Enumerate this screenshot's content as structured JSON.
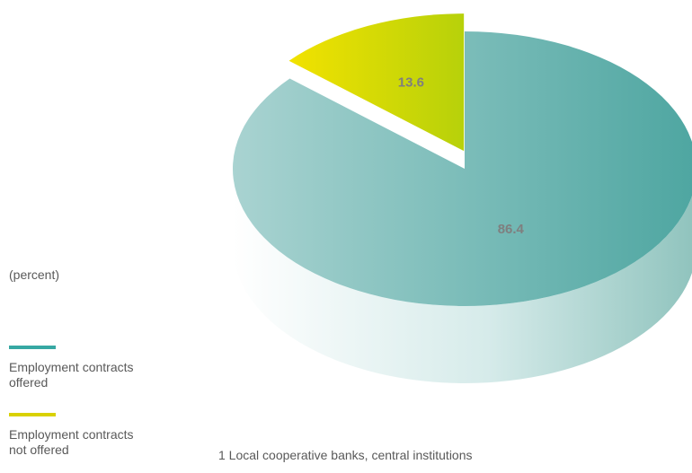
{
  "chart_data": {
    "type": "pie",
    "style": "3d",
    "unit_label": "(percent)",
    "slices": [
      {
        "label": "Employment contracts offered",
        "value": 86.4,
        "color": "#5aa9a4",
        "color_light": "#a6d2d0"
      },
      {
        "label": "Employment contracts not offered",
        "value": 13.6,
        "color": "#e3d800",
        "color_light": "#efe871"
      }
    ],
    "footnote": "1 Local cooperative banks, central institutions"
  },
  "legend": {
    "items": [
      {
        "text": "Employment contracts\noffered",
        "color": "#37a8a3"
      },
      {
        "text": "Employment contracts\nnot offered",
        "color": "#d9d100"
      }
    ]
  }
}
